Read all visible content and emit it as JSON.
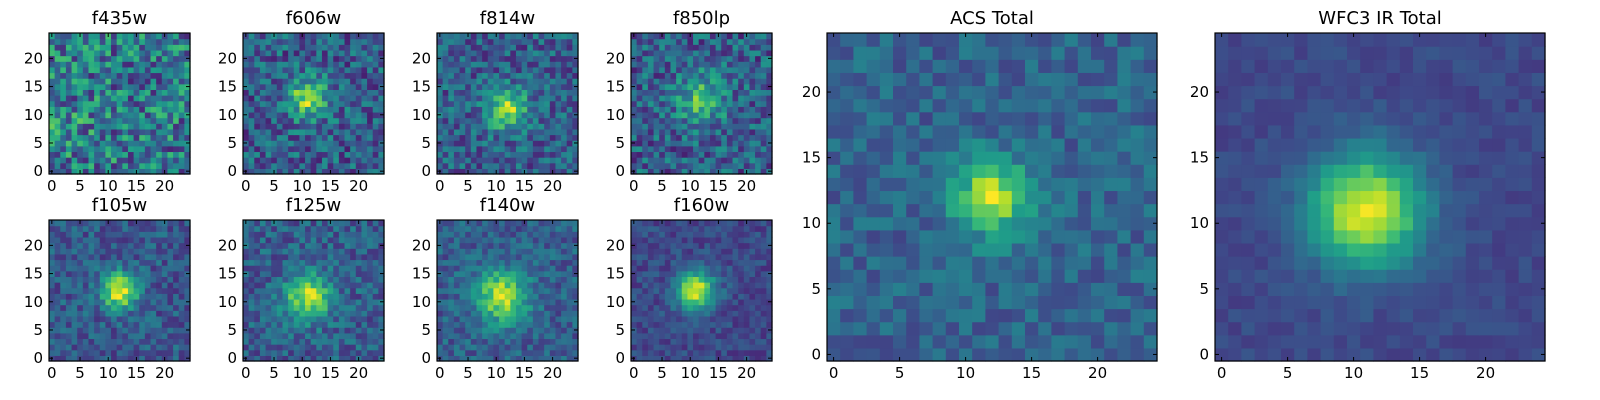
{
  "chart_data": [
    {
      "type": "heatmap",
      "title": "f435w",
      "xticks": [
        0,
        5,
        10,
        15,
        20
      ],
      "yticks": [
        0,
        5,
        10,
        15,
        20
      ],
      "xlim": [
        0,
        25
      ],
      "ylim": [
        0,
        25
      ],
      "colormap": "viridis",
      "peak": [
        2,
        8
      ],
      "background": 0.4,
      "noise": 0.3,
      "sigma": 3,
      "amp": 0.1,
      "seed": 11
    },
    {
      "type": "heatmap",
      "title": "f606w",
      "xticks": [
        0,
        5,
        10,
        15,
        20
      ],
      "yticks": [
        0,
        5,
        10,
        15,
        20
      ],
      "xlim": [
        0,
        25
      ],
      "ylim": [
        0,
        25
      ],
      "colormap": "viridis",
      "peak": [
        11,
        13
      ],
      "background": 0.3,
      "noise": 0.22,
      "sigma": 2.5,
      "amp": 0.55,
      "seed": 23
    },
    {
      "type": "heatmap",
      "title": "f814w",
      "xticks": [
        0,
        5,
        10,
        15,
        20
      ],
      "yticks": [
        0,
        5,
        10,
        15,
        20
      ],
      "xlim": [
        0,
        25
      ],
      "ylim": [
        0,
        25
      ],
      "colormap": "viridis",
      "peak": [
        12,
        11
      ],
      "background": 0.3,
      "noise": 0.2,
      "sigma": 2.5,
      "amp": 0.55,
      "seed": 37
    },
    {
      "type": "heatmap",
      "title": "f850lp",
      "xticks": [
        0,
        5,
        10,
        15,
        20
      ],
      "yticks": [
        0,
        5,
        10,
        15,
        20
      ],
      "xlim": [
        0,
        25
      ],
      "ylim": [
        0,
        25
      ],
      "colormap": "viridis",
      "peak": [
        12,
        13
      ],
      "background": 0.3,
      "noise": 0.22,
      "sigma": 3,
      "amp": 0.4,
      "seed": 41
    },
    {
      "type": "heatmap",
      "title": "f105w",
      "xticks": [
        0,
        5,
        10,
        15,
        20
      ],
      "yticks": [
        0,
        5,
        10,
        15,
        20
      ],
      "xlim": [
        0,
        25
      ],
      "ylim": [
        0,
        25
      ],
      "colormap": "viridis",
      "peak": [
        12,
        12
      ],
      "background": 0.28,
      "noise": 0.15,
      "sigma": 2.2,
      "amp": 0.7,
      "seed": 53
    },
    {
      "type": "heatmap",
      "title": "f125w",
      "xticks": [
        0,
        5,
        10,
        15,
        20
      ],
      "yticks": [
        0,
        5,
        10,
        15,
        20
      ],
      "xlim": [
        0,
        25
      ],
      "ylim": [
        0,
        25
      ],
      "colormap": "viridis",
      "peak": [
        11,
        11
      ],
      "background": 0.3,
      "noise": 0.16,
      "sigma": 2.8,
      "amp": 0.6,
      "seed": 67
    },
    {
      "type": "heatmap",
      "title": "f140w",
      "xticks": [
        0,
        5,
        10,
        15,
        20
      ],
      "yticks": [
        0,
        5,
        10,
        15,
        20
      ],
      "xlim": [
        0,
        25
      ],
      "ylim": [
        0,
        25
      ],
      "colormap": "viridis",
      "peak": [
        11,
        11
      ],
      "background": 0.3,
      "noise": 0.14,
      "sigma": 3.2,
      "amp": 0.6,
      "seed": 71
    },
    {
      "type": "heatmap",
      "title": "f160w",
      "xticks": [
        0,
        5,
        10,
        15,
        20
      ],
      "yticks": [
        0,
        5,
        10,
        15,
        20
      ],
      "xlim": [
        0,
        25
      ],
      "ylim": [
        0,
        25
      ],
      "colormap": "viridis",
      "peak": [
        11,
        12
      ],
      "background": 0.22,
      "noise": 0.1,
      "sigma": 2.4,
      "amp": 0.75,
      "seed": 83
    },
    {
      "type": "heatmap",
      "title": "ACS Total",
      "xticks": [
        0,
        5,
        10,
        15,
        20
      ],
      "yticks": [
        0,
        5,
        10,
        15,
        20
      ],
      "xlim": [
        0,
        25
      ],
      "ylim": [
        0,
        25
      ],
      "colormap": "viridis",
      "peak": [
        12,
        12
      ],
      "background": 0.32,
      "noise": 0.12,
      "sigma": 2,
      "amp": 0.6,
      "seed": 97
    },
    {
      "type": "heatmap",
      "title": "WFC3 IR Total",
      "xticks": [
        0,
        5,
        10,
        15,
        20
      ],
      "yticks": [
        0,
        5,
        10,
        15,
        20
      ],
      "xlim": [
        0,
        25
      ],
      "ylim": [
        0,
        25
      ],
      "colormap": "viridis",
      "peak": [
        11,
        11
      ],
      "background": 0.22,
      "noise": 0.05,
      "sigma": 3,
      "amp": 0.75,
      "seed": 101
    }
  ]
}
